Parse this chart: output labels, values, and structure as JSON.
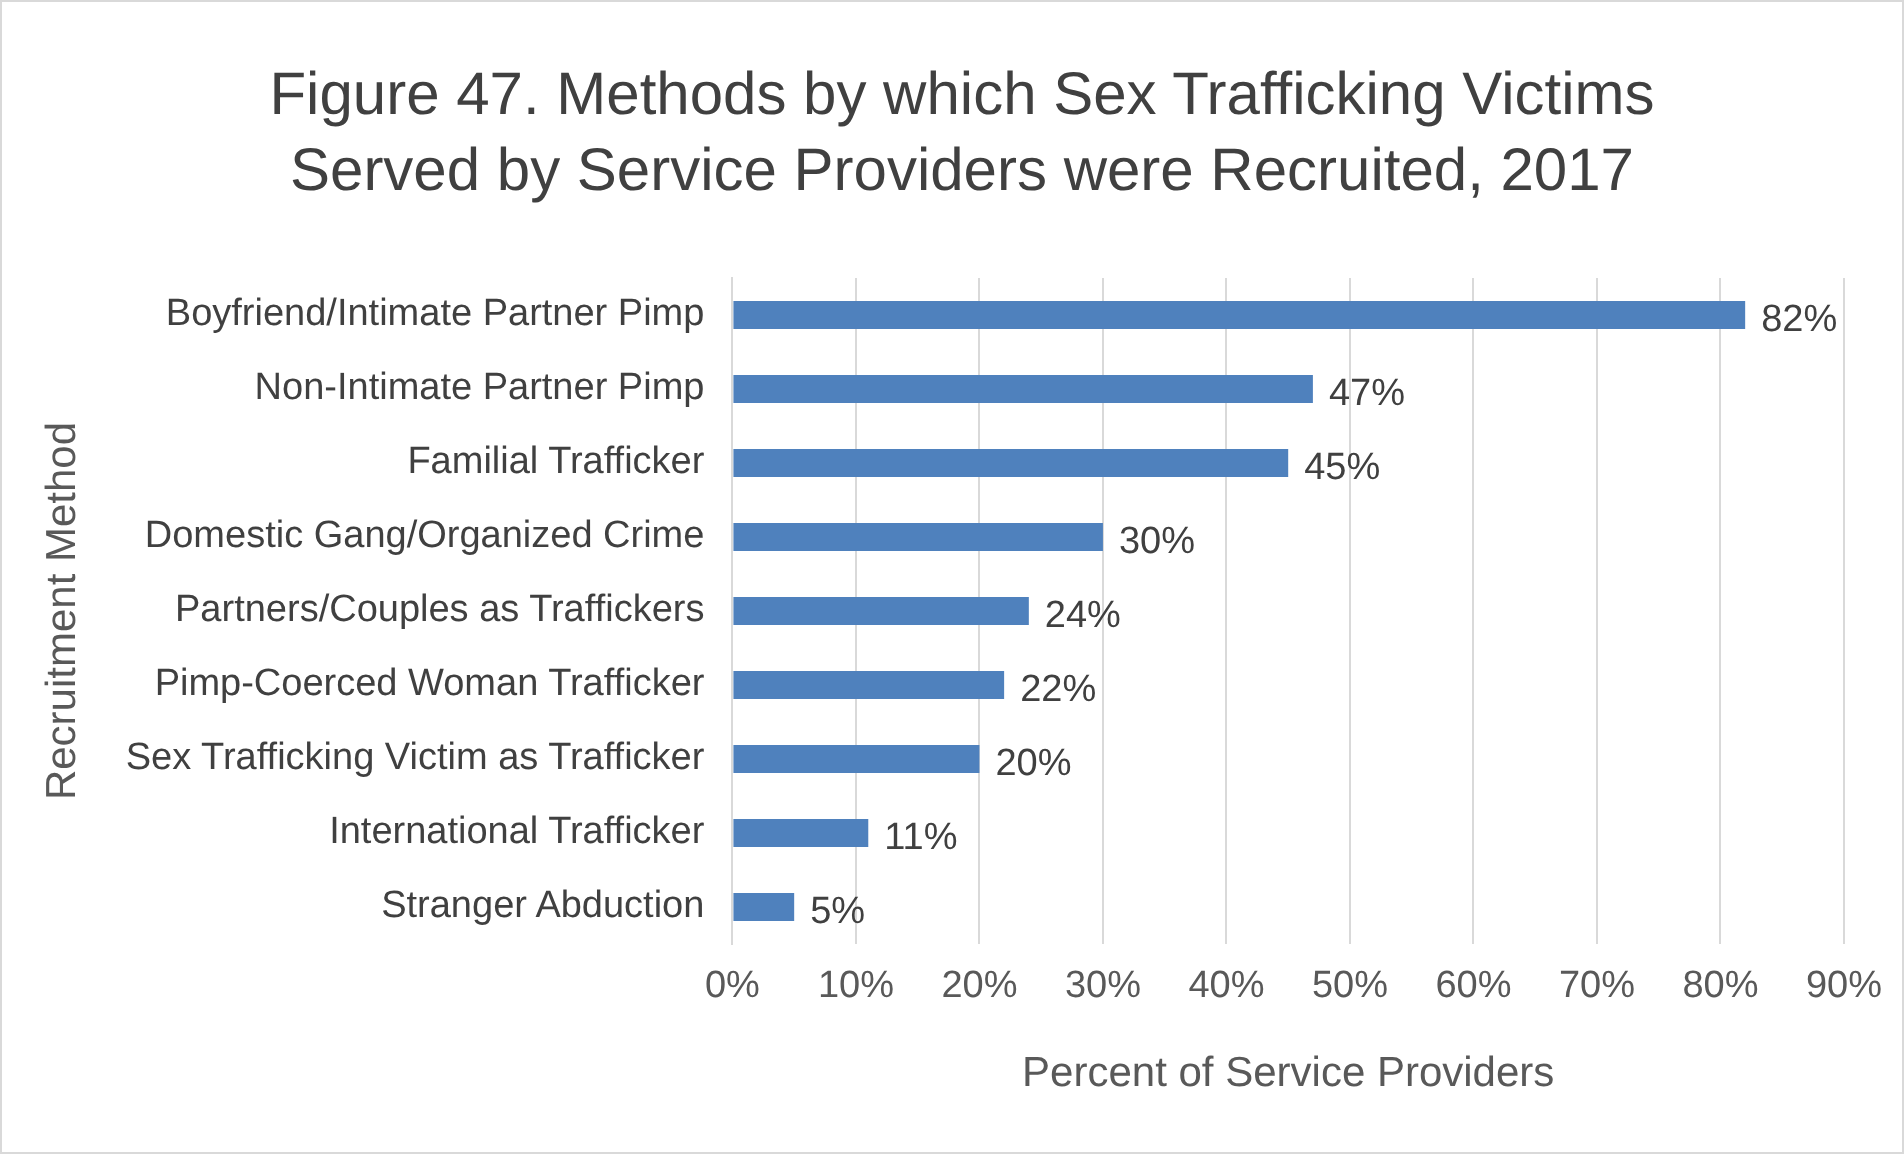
{
  "chart_data": {
    "type": "bar",
    "orientation": "horizontal",
    "title": "Figure 47. Methods by which Sex Trafficking Victims Served by Service Providers were Recruited, 2017",
    "xlabel": "Percent of Service Providers",
    "ylabel": "Recruitment Method",
    "categories": [
      "Boyfriend/Intimate Partner Pimp",
      "Non-Intimate Partner Pimp",
      "Familial Trafficker",
      "Domestic Gang/Organized Crime",
      "Partners/Couples as Traffickers",
      "Pimp-Coerced Woman Trafficker",
      "Sex Trafficking Victim as Trafficker",
      "International Trafficker",
      "Stranger Abduction"
    ],
    "values": [
      82,
      47,
      45,
      30,
      24,
      22,
      20,
      11,
      5
    ],
    "value_labels": [
      "82%",
      "47%",
      "45%",
      "30%",
      "24%",
      "22%",
      "20%",
      "11%",
      "5%"
    ],
    "color": "#4f81bd",
    "xlim": [
      0,
      90
    ],
    "xticks": [
      {
        "value": 0,
        "label": "0%"
      },
      {
        "value": 10,
        "label": "10%"
      },
      {
        "value": 20,
        "label": "20%"
      },
      {
        "value": 30,
        "label": "30%"
      },
      {
        "value": 40,
        "label": "40%"
      },
      {
        "value": 50,
        "label": "50%"
      },
      {
        "value": 60,
        "label": "60%"
      },
      {
        "value": 70,
        "label": "70%"
      },
      {
        "value": 80,
        "label": "80%"
      },
      {
        "value": 90,
        "label": "90%"
      }
    ],
    "grid": "x",
    "legend": false
  }
}
